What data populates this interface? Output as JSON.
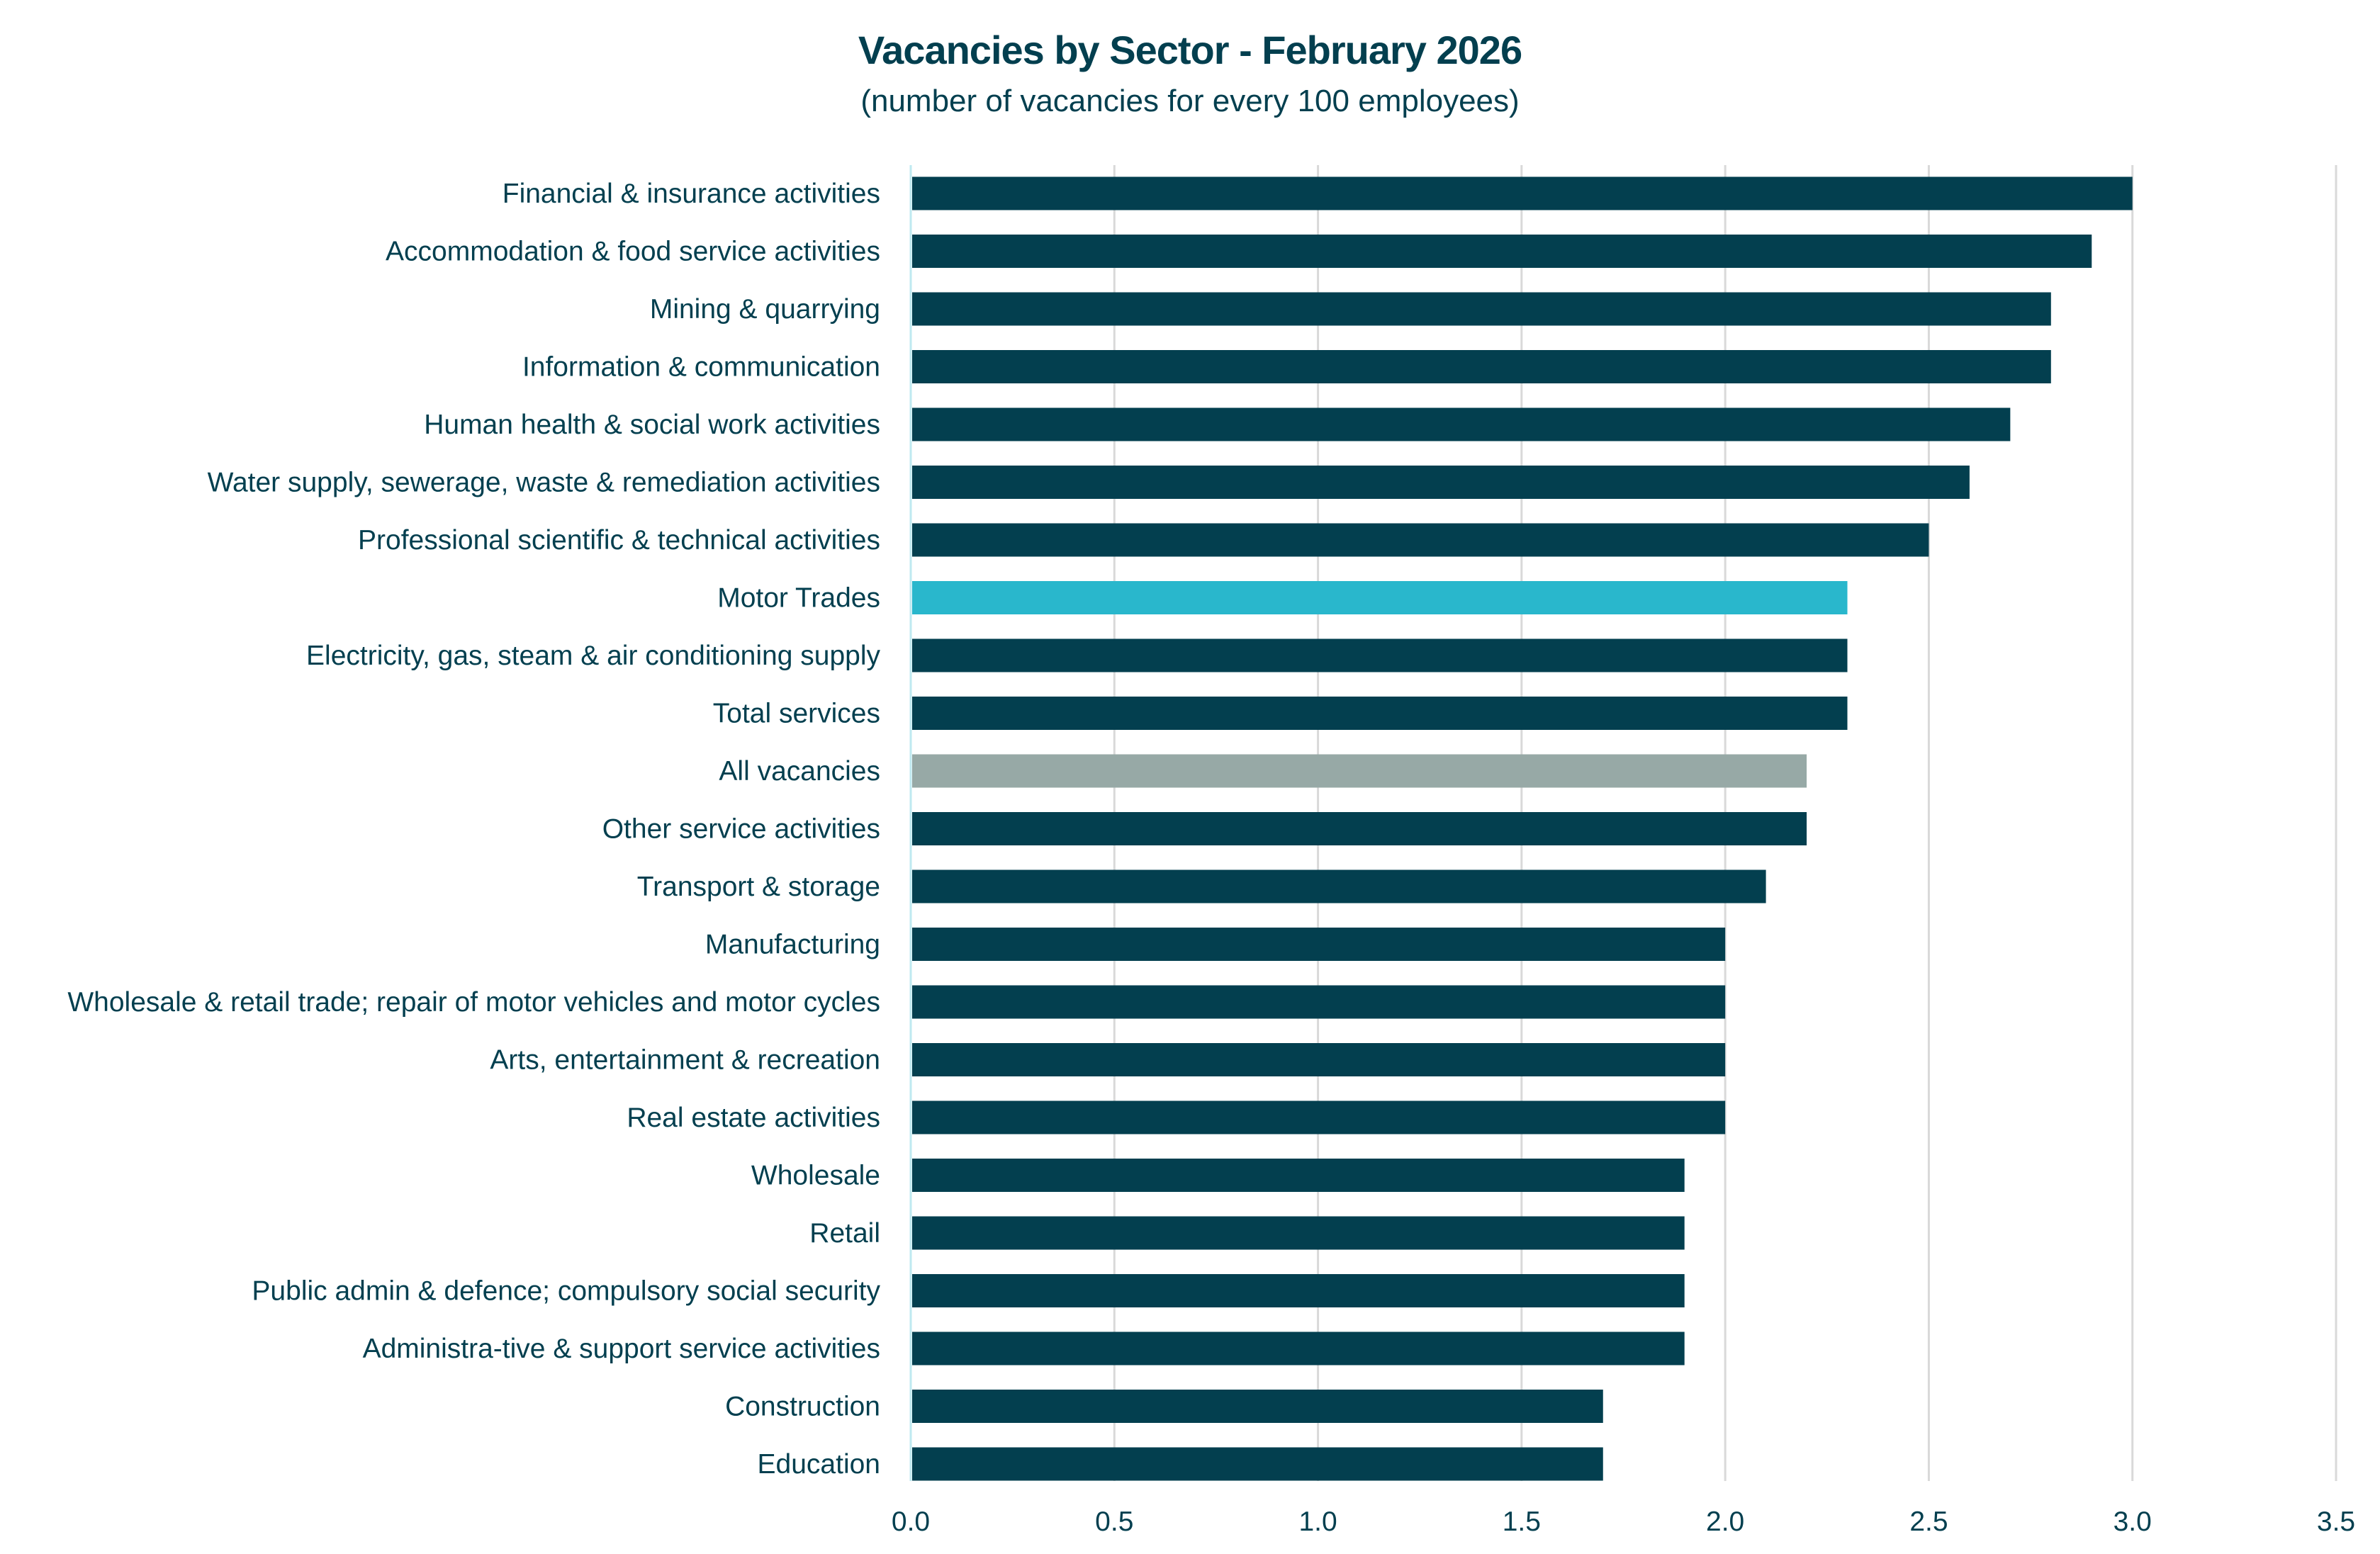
{
  "chart_data": {
    "type": "bar",
    "orientation": "horizontal",
    "title": "Vacancies by Sector  - February 2026",
    "subtitle": "(number of vacancies for every 100 employees)",
    "categories": [
      "Financial & insurance activities",
      "Accommodation & food service activities",
      "Mining & quarrying",
      "Information & communication",
      "Human health & social work activities",
      "Water supply, sewerage, waste & remediation activities",
      "Professional scientific & technical activities",
      "Motor Trades",
      "Electricity, gas, steam & air conditioning supply",
      "Total services",
      "All vacancies",
      "Other service activities",
      "Transport & storage",
      "Manufacturing",
      "Wholesale & retail trade; repair of motor vehicles and motor cycles",
      "Arts, entertainment & recreation",
      "Real estate activities",
      "Wholesale",
      "Retail",
      "Public admin & defence; compulsory social security",
      "Administra-tive & support service activities",
      "Construction",
      "Education"
    ],
    "values": [
      3.0,
      2.9,
      2.8,
      2.8,
      2.7,
      2.6,
      2.5,
      2.3,
      2.3,
      2.3,
      2.2,
      2.2,
      2.1,
      2.0,
      2.0,
      2.0,
      2.0,
      1.9,
      1.9,
      1.9,
      1.9,
      1.7,
      1.7
    ],
    "xlim": [
      0,
      3.5
    ],
    "xticks": [
      "0.0",
      "0.5",
      "1.0",
      "1.5",
      "2.0",
      "2.5",
      "3.0",
      "3.5"
    ],
    "grid": "vertical",
    "legend": "none",
    "colors": {
      "default": "#033f4f",
      "highlight": "#29b7cc",
      "benchmark": "#97a9a6",
      "gridline": "#d9d9d9",
      "axis": "#bfe9f0"
    },
    "highlight_categories": {
      "Motor Trades": "highlight",
      "All vacancies": "benchmark"
    }
  }
}
